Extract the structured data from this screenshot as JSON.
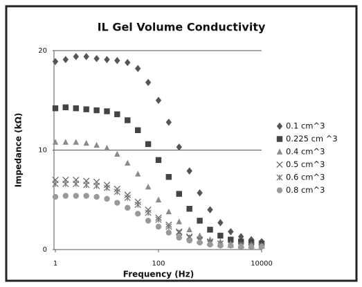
{
  "chart_data": {
    "type": "scatter",
    "title": "IL Gel Volume Conductivity",
    "x_label": "Frequency (Hz)",
    "y_label": "Impedance (kΩ)",
    "xscale": "log",
    "xlim": [
      1,
      10000
    ],
    "xticks": [
      1,
      100,
      10000
    ],
    "ylim": [
      0,
      20
    ],
    "yticks": [
      0,
      10,
      20
    ],
    "grid": true,
    "legend": "right",
    "x": [
      1,
      1.58,
      2.51,
      3.98,
      6.31,
      10,
      15.8,
      25.1,
      39.8,
      63.1,
      100,
      158,
      251,
      398,
      631,
      1000,
      1585,
      2512,
      3981,
      6310,
      10000
    ],
    "series": [
      {
        "name": "0.1 cm^3",
        "marker": "diamond",
        "color": "#555555",
        "values": [
          18.9,
          19.1,
          19.4,
          19.4,
          19.2,
          19.1,
          19.0,
          18.8,
          18.2,
          16.8,
          15.0,
          12.8,
          10.3,
          7.9,
          5.7,
          4.0,
          2.7,
          1.8,
          1.3,
          1.0,
          0.8
        ]
      },
      {
        "name": "0.225 cm ^3",
        "marker": "square",
        "color": "#444444",
        "values": [
          14.2,
          14.3,
          14.2,
          14.1,
          14.0,
          13.9,
          13.6,
          13.0,
          12.0,
          10.6,
          9.0,
          7.3,
          5.6,
          4.1,
          2.9,
          2.0,
          1.4,
          1.0,
          0.8,
          0.7,
          0.6
        ]
      },
      {
        "name": "0.4 cm^3",
        "marker": "triangle",
        "color": "#8a8a8a",
        "values": [
          10.8,
          10.8,
          10.8,
          10.7,
          10.5,
          10.2,
          9.6,
          8.7,
          7.6,
          6.3,
          5.0,
          3.8,
          2.8,
          2.0,
          1.4,
          1.0,
          0.8,
          0.6,
          0.5,
          0.5,
          0.4
        ]
      },
      {
        "name": "0.5 cm^3",
        "marker": "x",
        "color": "#666666",
        "values": [
          7.0,
          7.0,
          7.0,
          6.9,
          6.8,
          6.5,
          6.1,
          5.5,
          4.8,
          4.0,
          3.2,
          2.5,
          1.8,
          1.3,
          1.0,
          0.8,
          0.6,
          0.5,
          0.5,
          0.4,
          0.4
        ]
      },
      {
        "name": "0.6 cm^3",
        "marker": "star",
        "color": "#777777",
        "values": [
          6.6,
          6.6,
          6.6,
          6.5,
          6.4,
          6.2,
          5.8,
          5.2,
          4.5,
          3.7,
          3.0,
          2.3,
          1.7,
          1.2,
          0.9,
          0.7,
          0.6,
          0.5,
          0.4,
          0.4,
          0.4
        ]
      },
      {
        "name": "0.8 cm^3",
        "marker": "circle",
        "color": "#999999",
        "values": [
          5.3,
          5.4,
          5.4,
          5.4,
          5.3,
          5.1,
          4.7,
          4.2,
          3.6,
          2.9,
          2.3,
          1.7,
          1.2,
          0.9,
          0.7,
          0.5,
          0.4,
          0.4,
          0.3,
          0.3,
          0.3
        ]
      }
    ]
  }
}
